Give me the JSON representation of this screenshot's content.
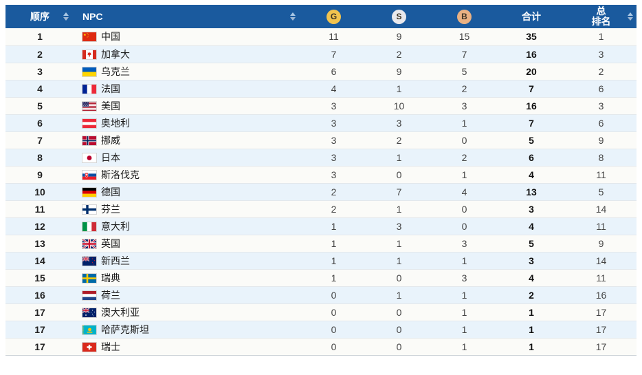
{
  "table": {
    "columns": {
      "order": "顺序",
      "npc": "NPC",
      "gold": "G",
      "silver": "S",
      "bronze": "B",
      "total": "合计",
      "overall_rank_line1": "总",
      "overall_rank_line2": "排名"
    },
    "colors": {
      "header_bg": "#1a5a9e",
      "row_odd_bg": "#fbfbf8",
      "row_even_bg": "#e9f3fb",
      "gold_medal": "#f2c34e",
      "silver_medal": "#e9e9ed",
      "bronze_medal": "#e9b183",
      "sort_arrow": "#aac8e6"
    },
    "icons": {
      "gold": "gold-medal-icon",
      "silver": "silver-medal-icon",
      "bronze": "bronze-medal-icon",
      "sort": "sort-icon"
    },
    "rows": [
      {
        "order": "1",
        "country": "中国",
        "flag": "cn",
        "gold": "11",
        "silver": "9",
        "bronze": "15",
        "total": "35",
        "overall_rank": "1"
      },
      {
        "order": "2",
        "country": "加拿大",
        "flag": "ca",
        "gold": "7",
        "silver": "2",
        "bronze": "7",
        "total": "16",
        "overall_rank": "3"
      },
      {
        "order": "3",
        "country": "乌克兰",
        "flag": "ua",
        "gold": "6",
        "silver": "9",
        "bronze": "5",
        "total": "20",
        "overall_rank": "2"
      },
      {
        "order": "4",
        "country": "法国",
        "flag": "fr",
        "gold": "4",
        "silver": "1",
        "bronze": "2",
        "total": "7",
        "overall_rank": "6"
      },
      {
        "order": "5",
        "country": "美国",
        "flag": "us",
        "gold": "3",
        "silver": "10",
        "bronze": "3",
        "total": "16",
        "overall_rank": "3"
      },
      {
        "order": "6",
        "country": "奥地利",
        "flag": "at",
        "gold": "3",
        "silver": "3",
        "bronze": "1",
        "total": "7",
        "overall_rank": "6"
      },
      {
        "order": "7",
        "country": "挪威",
        "flag": "no",
        "gold": "3",
        "silver": "2",
        "bronze": "0",
        "total": "5",
        "overall_rank": "9"
      },
      {
        "order": "8",
        "country": "日本",
        "flag": "jp",
        "gold": "3",
        "silver": "1",
        "bronze": "2",
        "total": "6",
        "overall_rank": "8"
      },
      {
        "order": "9",
        "country": "斯洛伐克",
        "flag": "sk",
        "gold": "3",
        "silver": "0",
        "bronze": "1",
        "total": "4",
        "overall_rank": "11"
      },
      {
        "order": "10",
        "country": "德国",
        "flag": "de",
        "gold": "2",
        "silver": "7",
        "bronze": "4",
        "total": "13",
        "overall_rank": "5"
      },
      {
        "order": "11",
        "country": "芬兰",
        "flag": "fi",
        "gold": "2",
        "silver": "1",
        "bronze": "0",
        "total": "3",
        "overall_rank": "14"
      },
      {
        "order": "12",
        "country": "意大利",
        "flag": "it",
        "gold": "1",
        "silver": "3",
        "bronze": "0",
        "total": "4",
        "overall_rank": "11"
      },
      {
        "order": "13",
        "country": "英国",
        "flag": "gb",
        "gold": "1",
        "silver": "1",
        "bronze": "3",
        "total": "5",
        "overall_rank": "9"
      },
      {
        "order": "14",
        "country": "新西兰",
        "flag": "nz",
        "gold": "1",
        "silver": "1",
        "bronze": "1",
        "total": "3",
        "overall_rank": "14"
      },
      {
        "order": "15",
        "country": "瑞典",
        "flag": "se",
        "gold": "1",
        "silver": "0",
        "bronze": "3",
        "total": "4",
        "overall_rank": "11"
      },
      {
        "order": "16",
        "country": "荷兰",
        "flag": "nl",
        "gold": "0",
        "silver": "1",
        "bronze": "1",
        "total": "2",
        "overall_rank": "16"
      },
      {
        "order": "17",
        "country": "澳大利亚",
        "flag": "au",
        "gold": "0",
        "silver": "0",
        "bronze": "1",
        "total": "1",
        "overall_rank": "17"
      },
      {
        "order": "17",
        "country": "哈萨克斯坦",
        "flag": "kz",
        "gold": "0",
        "silver": "0",
        "bronze": "1",
        "total": "1",
        "overall_rank": "17"
      },
      {
        "order": "17",
        "country": "瑞士",
        "flag": "ch",
        "gold": "0",
        "silver": "0",
        "bronze": "1",
        "total": "1",
        "overall_rank": "17"
      }
    ]
  }
}
